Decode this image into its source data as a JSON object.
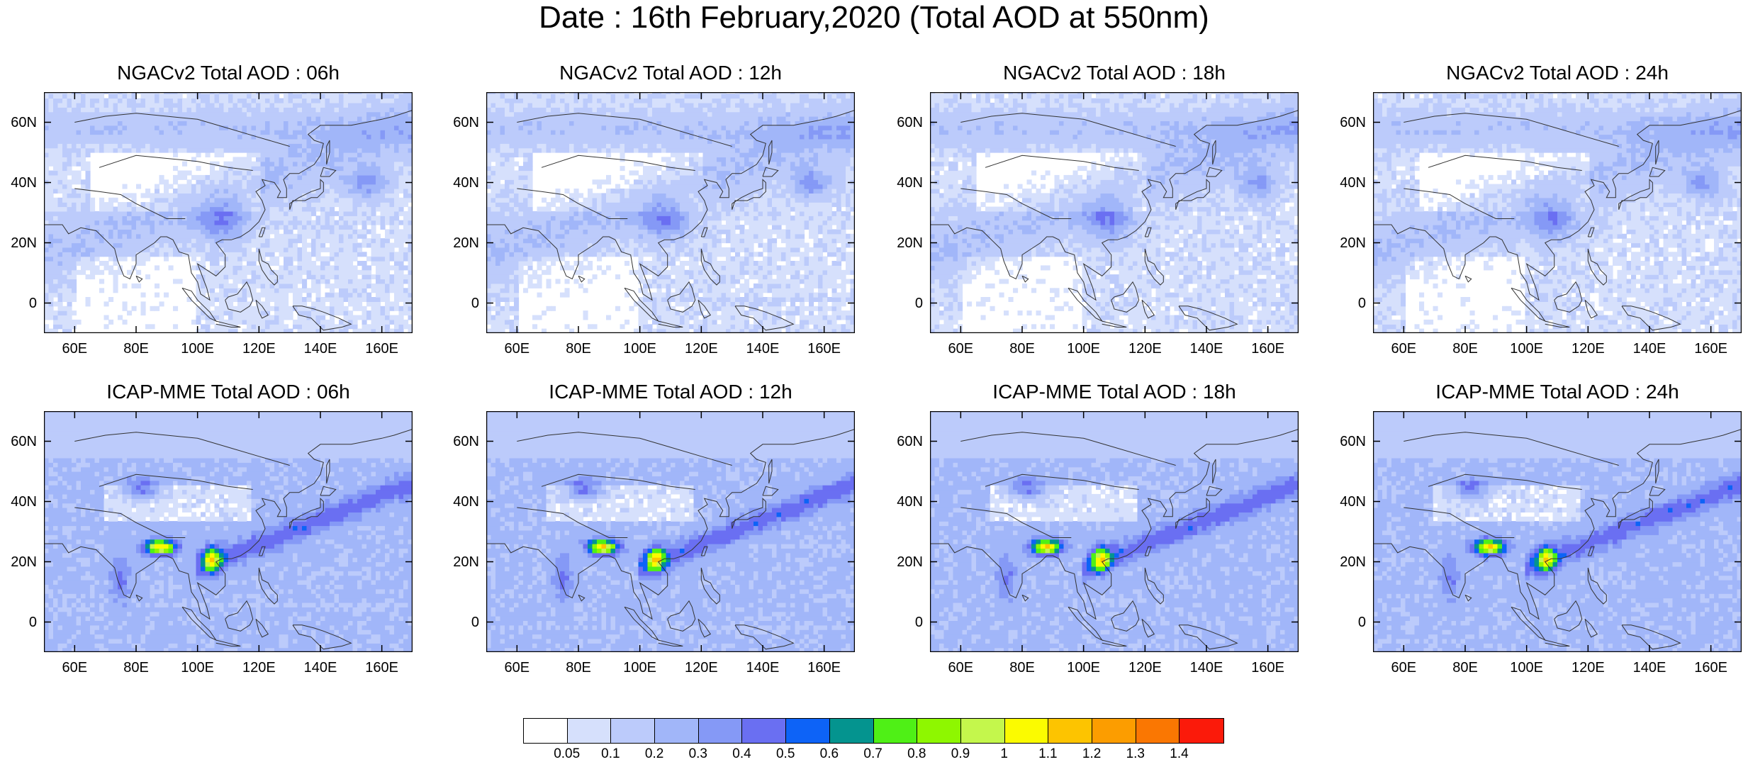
{
  "title": "Date : 16th February,2020 (Total AOD at 550nm)",
  "axes": {
    "lat_labels": [
      "60N",
      "40N",
      "20N",
      "0"
    ],
    "lon_labels": [
      "60E",
      "80E",
      "100E",
      "120E",
      "140E",
      "160E"
    ]
  },
  "panels": [
    {
      "title": "NGACv2 Total AOD : 06h",
      "model": "NGACv2",
      "hour": 6
    },
    {
      "title": "NGACv2 Total AOD : 12h",
      "model": "NGACv2",
      "hour": 12
    },
    {
      "title": "NGACv2 Total AOD : 18h",
      "model": "NGACv2",
      "hour": 18
    },
    {
      "title": "NGACv2 Total AOD : 24h",
      "model": "NGACv2",
      "hour": 24
    },
    {
      "title": "ICAP-MME Total AOD : 06h",
      "model": "ICAP-MME",
      "hour": 6
    },
    {
      "title": "ICAP-MME Total AOD : 12h",
      "model": "ICAP-MME",
      "hour": 12
    },
    {
      "title": "ICAP-MME Total AOD : 18h",
      "model": "ICAP-MME",
      "hour": 18
    },
    {
      "title": "ICAP-MME Total AOD : 24h",
      "model": "ICAP-MME",
      "hour": 24
    }
  ],
  "map_extent": {
    "lon": [
      50,
      170
    ],
    "lat": [
      -10,
      70
    ]
  },
  "colorbar": {
    "labels": [
      "0.05",
      "0.1",
      "0.2",
      "0.3",
      "0.4",
      "0.5",
      "0.6",
      "0.7",
      "0.8",
      "0.9",
      "1",
      "1.1",
      "1.2",
      "1.3",
      "1.4"
    ],
    "colors": [
      "#ffffff",
      "#d6e0fc",
      "#bccbfb",
      "#a1b6f9",
      "#8599f6",
      "#6a6ff2",
      "#0d63f7",
      "#04948f",
      "#4ff016",
      "#8ef700",
      "#c4f74c",
      "#fbfb00",
      "#fdc400",
      "#fc9d00",
      "#fa7702",
      "#fb1a0a"
    ]
  }
}
